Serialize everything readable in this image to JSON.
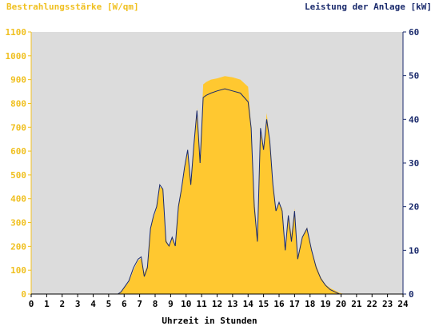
{
  "chart_data": {
    "type": "area",
    "xlabel": "Uhrzeit in Stunden",
    "ylabel_left": "Bestrahlungsstärke [W/qm]",
    "ylabel_right": "Leistung der Anlage [kW]",
    "xlim": [
      0,
      24
    ],
    "ylim_left": [
      0,
      1100
    ],
    "ylim_right": [
      0,
      60
    ],
    "x_ticks": [
      "0",
      "1",
      "2",
      "3",
      "4",
      "5",
      "6",
      "7",
      "8",
      "9",
      "10",
      "11",
      "12",
      "13",
      "14",
      "15",
      "16",
      "17",
      "18",
      "19",
      "20",
      "21",
      "22",
      "23",
      "24"
    ],
    "y_left_ticks": [
      "0",
      "100",
      "200",
      "300",
      "400",
      "500",
      "600",
      "700",
      "800",
      "900",
      "1000",
      "1100"
    ],
    "y_right_ticks": [
      "0",
      "10",
      "20",
      "30",
      "40",
      "50",
      "60"
    ],
    "grid": false,
    "colors": {
      "plot_background": "#dcdcdc",
      "irradiance_fill": "#ffc830",
      "power_line": "#1a2a6c",
      "left_axis_text": "#f0c020",
      "right_axis_text": "#1a2a6c"
    },
    "series": [
      {
        "name": "Bestrahlungsstärke [W/qm]",
        "axis": "left",
        "kind": "area",
        "x": [
          0,
          5.6,
          5.8,
          6.0,
          6.3,
          6.6,
          6.9,
          7.1,
          7.3,
          7.5,
          7.7,
          7.9,
          8.1,
          8.3,
          8.5,
          8.7,
          8.9,
          9.1,
          9.3,
          9.5,
          9.7,
          9.9,
          10.1,
          10.3,
          10.5,
          10.7,
          10.9,
          11.1,
          11.3,
          11.6,
          12.0,
          12.5,
          13.0,
          13.5,
          14.0,
          14.2,
          14.4,
          14.6,
          14.8,
          15.0,
          15.2,
          15.4,
          15.6,
          15.8,
          16.0,
          16.2,
          16.4,
          16.6,
          16.8,
          17.0,
          17.2,
          17.5,
          17.8,
          18.1,
          18.4,
          18.7,
          19.0,
          19.3,
          19.6,
          19.9,
          20.2,
          24
        ],
        "values": [
          0,
          0,
          10,
          25,
          50,
          100,
          140,
          150,
          90,
          120,
          280,
          320,
          360,
          450,
          440,
          230,
          200,
          240,
          200,
          380,
          430,
          520,
          600,
          460,
          620,
          780,
          560,
          880,
          890,
          900,
          905,
          915,
          910,
          900,
          870,
          700,
          400,
          250,
          680,
          600,
          760,
          650,
          460,
          350,
          380,
          360,
          180,
          330,
          250,
          360,
          160,
          240,
          280,
          180,
          120,
          70,
          40,
          25,
          15,
          5,
          0,
          0
        ]
      },
      {
        "name": "Leistung der Anlage [kW]",
        "axis": "right",
        "kind": "line",
        "x": [
          0,
          5.6,
          5.8,
          6.0,
          6.3,
          6.6,
          6.9,
          7.1,
          7.3,
          7.5,
          7.7,
          7.9,
          8.1,
          8.3,
          8.5,
          8.7,
          8.9,
          9.1,
          9.3,
          9.5,
          9.7,
          9.9,
          10.1,
          10.3,
          10.5,
          10.7,
          10.9,
          11.1,
          11.3,
          11.6,
          12.0,
          12.5,
          13.0,
          13.5,
          14.0,
          14.2,
          14.4,
          14.6,
          14.8,
          15.0,
          15.2,
          15.4,
          15.6,
          15.8,
          16.0,
          16.2,
          16.4,
          16.6,
          16.8,
          17.0,
          17.2,
          17.5,
          17.8,
          18.1,
          18.4,
          18.7,
          19.0,
          19.3,
          19.6,
          19.9,
          20.2,
          24
        ],
        "values": [
          0,
          0,
          0.5,
          1.5,
          3,
          6,
          8,
          8.5,
          4,
          6,
          15,
          18,
          20,
          25,
          24,
          12,
          11,
          13,
          11,
          20,
          24,
          29,
          33,
          25,
          34,
          42,
          30,
          45,
          45.5,
          46,
          46.5,
          47,
          46.5,
          46,
          44,
          38,
          20,
          12,
          38,
          33,
          40,
          35,
          25,
          19,
          21,
          19,
          10,
          18,
          12,
          19,
          8,
          13,
          15,
          10,
          6,
          3.5,
          2,
          1,
          0.5,
          0,
          0,
          0
        ]
      }
    ]
  }
}
